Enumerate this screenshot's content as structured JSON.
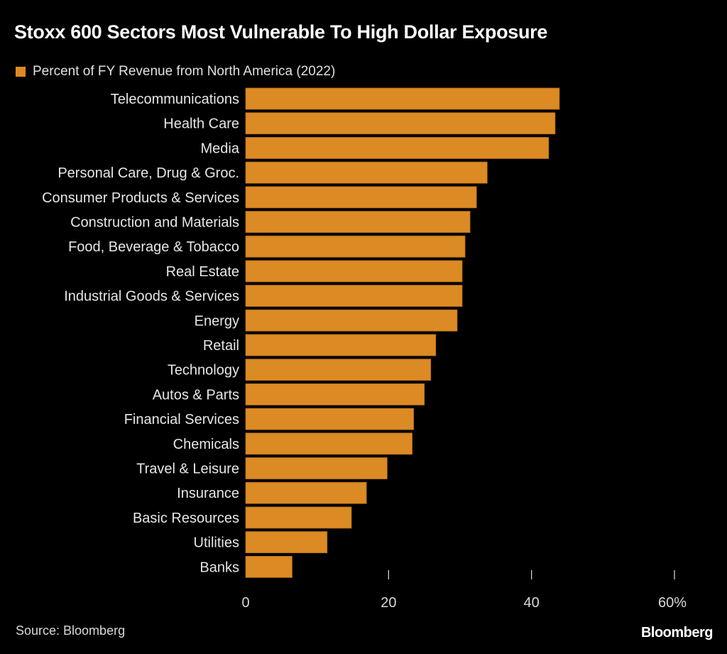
{
  "chart_data": {
    "type": "bar",
    "orientation": "horizontal",
    "title": "Stoxx 600 Sectors Most Vulnerable To High Dollar Exposure",
    "categories": [
      "Telecommunications",
      "Health Care",
      "Media",
      "Personal Care, Drug & Groc.",
      "Consumer Products & Services",
      "Construction and Materials",
      "Food, Beverage & Tobacco",
      "Real Estate",
      "Industrial Goods & Services",
      "Energy",
      "Retail",
      "Technology",
      "Autos & Parts",
      "Financial Services",
      "Chemicals",
      "Travel & Leisure",
      "Insurance",
      "Basic Resources",
      "Utilities",
      "Banks"
    ],
    "series": [
      {
        "name": "Percent of FY Revenue from North America (2022)",
        "color": "#dc8a24",
        "values": [
          43.9,
          43.3,
          42.4,
          33.8,
          32.3,
          31.4,
          30.7,
          30.3,
          30.3,
          29.6,
          26.6,
          25.9,
          25.0,
          23.5,
          23.3,
          19.8,
          16.9,
          14.8,
          11.4,
          6.5
        ]
      }
    ],
    "xlim": [
      0,
      60
    ],
    "xticks": [
      0,
      20,
      40,
      60
    ],
    "xtick_labels": [
      "0",
      "20",
      "40",
      "60%"
    ],
    "xlabel": "",
    "ylabel": "",
    "grid": false,
    "legend_position": "top-left"
  },
  "footer": {
    "source": "Source: Bloomberg",
    "logo": "Bloomberg"
  },
  "colors": {
    "background": "#000000",
    "bar": "#dc8a24"
  }
}
